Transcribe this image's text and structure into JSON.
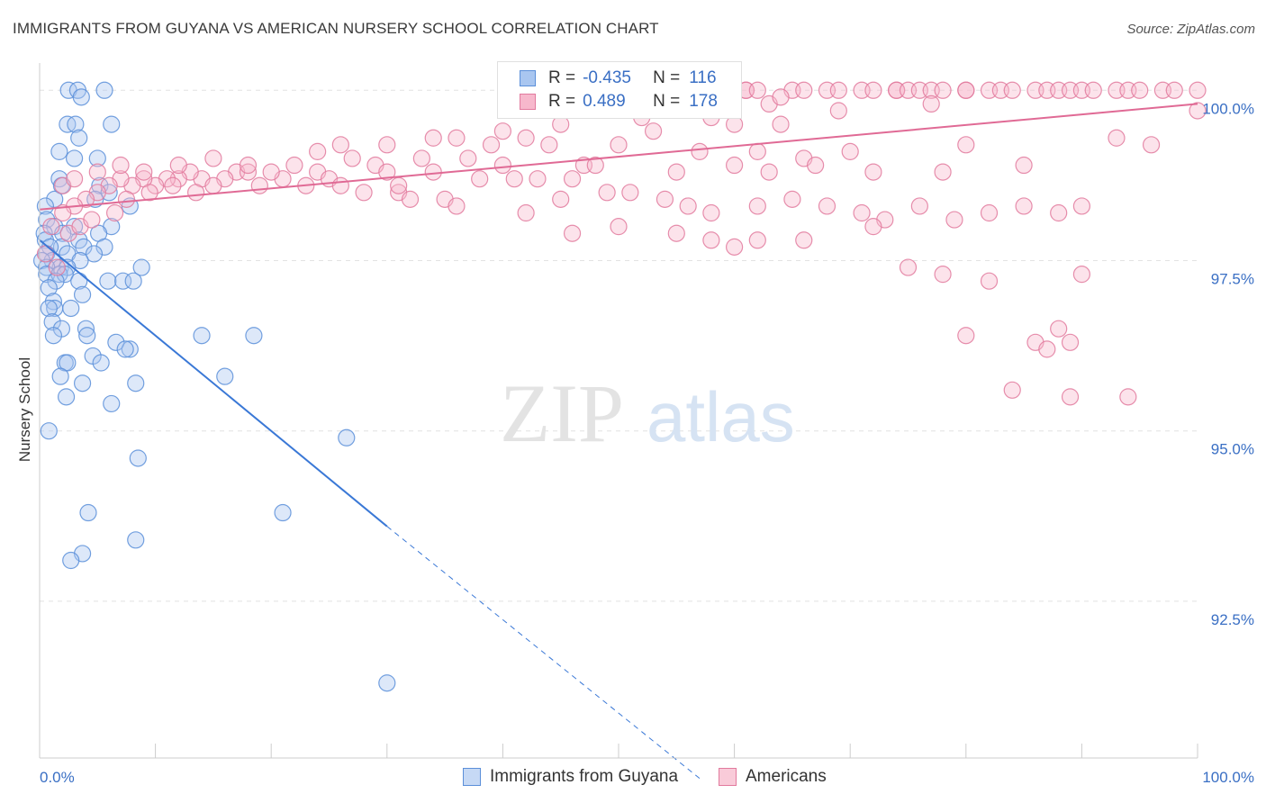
{
  "title": "IMMIGRANTS FROM GUYANA VS AMERICAN NURSERY SCHOOL CORRELATION CHART",
  "source": "Source: ZipAtlas.com",
  "watermark": {
    "zip": "ZIP",
    "atlas": "atlas"
  },
  "legend": {
    "r_label": "R = ",
    "n_label": "N = ",
    "series": [
      {
        "r": "-0.435",
        "n": "116",
        "fill": "#a9c6f0",
        "stroke": "#5b8fd9"
      },
      {
        "r": "0.489",
        "n": "178",
        "fill": "#f7b8cc",
        "stroke": "#e27a9e"
      }
    ]
  },
  "bottom_legend": [
    "Immigrants from Guyana",
    "Americans"
  ],
  "chart_data": {
    "type": "scatter",
    "ylabel": "Nursery School",
    "xlabel": "",
    "xlim": [
      0,
      100
    ],
    "ylim": [
      90.2,
      100.4
    ],
    "x_tick_labels": [
      "0.0%",
      "100.0%"
    ],
    "y_ticks": [
      100,
      97.5,
      95,
      92.5
    ],
    "y_tick_labels": [
      "100.0%",
      "97.5%",
      "95.0%",
      "92.5%"
    ],
    "grid": true,
    "series": [
      {
        "name": "Immigrants from Guyana",
        "color": "#5b8fd9",
        "fill": "#a9c6f0",
        "trend": {
          "x0": 0,
          "y0": 97.8,
          "x1": 30,
          "y1": 93.6,
          "dash_to_x": 57,
          "dash_to_y": 89.9,
          "color": "#3a78d6"
        },
        "points": [
          [
            2.5,
            100
          ],
          [
            3.3,
            100
          ],
          [
            5.6,
            100
          ],
          [
            3.6,
            99.9
          ],
          [
            2.4,
            99.5
          ],
          [
            3.1,
            99.5
          ],
          [
            6.2,
            99.5
          ],
          [
            3.4,
            99.3
          ],
          [
            1.7,
            99.1
          ],
          [
            3.0,
            99.0
          ],
          [
            5.0,
            99.0
          ],
          [
            1.7,
            98.7
          ],
          [
            1.9,
            98.6
          ],
          [
            5.2,
            98.6
          ],
          [
            6.0,
            98.5
          ],
          [
            1.3,
            98.4
          ],
          [
            4.8,
            98.4
          ],
          [
            0.5,
            98.3
          ],
          [
            7.8,
            98.3
          ],
          [
            0.6,
            98.1
          ],
          [
            1.3,
            98.0
          ],
          [
            3.0,
            98.0
          ],
          [
            6.2,
            98.0
          ],
          [
            0.4,
            97.9
          ],
          [
            2.0,
            97.9
          ],
          [
            3.4,
            97.8
          ],
          [
            5.1,
            97.9
          ],
          [
            0.5,
            97.8
          ],
          [
            1.9,
            97.7
          ],
          [
            0.9,
            97.7
          ],
          [
            3.8,
            97.7
          ],
          [
            5.6,
            97.7
          ],
          [
            0.6,
            97.6
          ],
          [
            2.4,
            97.6
          ],
          [
            4.7,
            97.6
          ],
          [
            3.5,
            97.5
          ],
          [
            1.1,
            97.5
          ],
          [
            0.2,
            97.5
          ],
          [
            1.8,
            97.4
          ],
          [
            0.6,
            97.4
          ],
          [
            2.4,
            97.4
          ],
          [
            8.8,
            97.4
          ],
          [
            0.6,
            97.3
          ],
          [
            1.7,
            97.3
          ],
          [
            2.2,
            97.3
          ],
          [
            3.4,
            97.2
          ],
          [
            5.9,
            97.2
          ],
          [
            7.2,
            97.2
          ],
          [
            8.1,
            97.2
          ],
          [
            1.4,
            97.2
          ],
          [
            0.8,
            97.1
          ],
          [
            3.7,
            97.0
          ],
          [
            1.2,
            96.9
          ],
          [
            1.3,
            96.8
          ],
          [
            2.7,
            96.8
          ],
          [
            0.8,
            96.8
          ],
          [
            1.1,
            96.6
          ],
          [
            1.9,
            96.5
          ],
          [
            4.0,
            96.5
          ],
          [
            4.1,
            96.4
          ],
          [
            1.2,
            96.4
          ],
          [
            14.0,
            96.4
          ],
          [
            18.5,
            96.4
          ],
          [
            6.6,
            96.3
          ],
          [
            7.8,
            96.2
          ],
          [
            7.4,
            96.2
          ],
          [
            4.6,
            96.1
          ],
          [
            2.2,
            96.0
          ],
          [
            2.4,
            96.0
          ],
          [
            5.3,
            96.0
          ],
          [
            1.8,
            95.8
          ],
          [
            3.7,
            95.7
          ],
          [
            8.3,
            95.7
          ],
          [
            16.0,
            95.8
          ],
          [
            2.3,
            95.5
          ],
          [
            6.2,
            95.4
          ],
          [
            0.8,
            95.0
          ],
          [
            26.5,
            94.9
          ],
          [
            8.5,
            94.6
          ],
          [
            4.2,
            93.8
          ],
          [
            21.0,
            93.8
          ],
          [
            8.3,
            93.4
          ],
          [
            3.7,
            93.2
          ],
          [
            2.7,
            93.1
          ],
          [
            30.0,
            91.3
          ]
        ]
      },
      {
        "name": "Americans",
        "color": "#e27a9e",
        "fill": "#f7b8cc",
        "trend": {
          "x0": 0,
          "y0": 98.25,
          "x1": 100,
          "y1": 99.8,
          "color": "#e06a95"
        },
        "points": [
          [
            61,
            100
          ],
          [
            61,
            100
          ],
          [
            62,
            100
          ],
          [
            65,
            100
          ],
          [
            66,
            100
          ],
          [
            68,
            100
          ],
          [
            69,
            100
          ],
          [
            71,
            100
          ],
          [
            72,
            100
          ],
          [
            74,
            100
          ],
          [
            74,
            100
          ],
          [
            75,
            100
          ],
          [
            76,
            100
          ],
          [
            77,
            100
          ],
          [
            78,
            100
          ],
          [
            80,
            100
          ],
          [
            80,
            100
          ],
          [
            82,
            100
          ],
          [
            83,
            100
          ],
          [
            84,
            100
          ],
          [
            86,
            100
          ],
          [
            87,
            100
          ],
          [
            88,
            100
          ],
          [
            89,
            100
          ],
          [
            90,
            100
          ],
          [
            91,
            100
          ],
          [
            93,
            100
          ],
          [
            94,
            100
          ],
          [
            95,
            100
          ],
          [
            97,
            100
          ],
          [
            98,
            100
          ],
          [
            100,
            100
          ],
          [
            48,
            99.9
          ],
          [
            52,
            99.9
          ],
          [
            55,
            99.9
          ],
          [
            59,
            99.9
          ],
          [
            63,
            99.8
          ],
          [
            64,
            99.9
          ],
          [
            77,
            99.8
          ],
          [
            69,
            99.7
          ],
          [
            58,
            99.6
          ],
          [
            60,
            99.5
          ],
          [
            64,
            99.5
          ],
          [
            100,
            99.7
          ],
          [
            53,
            99.4
          ],
          [
            36,
            99.3
          ],
          [
            42,
            99.3
          ],
          [
            44,
            99.2
          ],
          [
            39,
            99.2
          ],
          [
            50,
            99.2
          ],
          [
            57,
            99.1
          ],
          [
            80,
            99.2
          ],
          [
            62,
            99.1
          ],
          [
            66,
            99.0
          ],
          [
            70,
            99.1
          ],
          [
            93,
            99.3
          ],
          [
            96,
            99.2
          ],
          [
            33,
            99.0
          ],
          [
            37,
            99.0
          ],
          [
            40,
            98.9
          ],
          [
            47,
            98.9
          ],
          [
            48,
            98.9
          ],
          [
            55,
            98.8
          ],
          [
            60,
            98.9
          ],
          [
            63,
            98.8
          ],
          [
            67,
            98.9
          ],
          [
            72,
            98.8
          ],
          [
            78,
            98.8
          ],
          [
            85,
            98.9
          ],
          [
            27,
            99.0
          ],
          [
            29,
            98.9
          ],
          [
            30,
            98.8
          ],
          [
            34,
            98.8
          ],
          [
            38,
            98.7
          ],
          [
            41,
            98.7
          ],
          [
            43,
            98.7
          ],
          [
            46,
            98.7
          ],
          [
            22,
            98.9
          ],
          [
            24,
            98.8
          ],
          [
            25,
            98.7
          ],
          [
            21,
            98.7
          ],
          [
            20,
            98.8
          ],
          [
            17,
            98.8
          ],
          [
            16,
            98.7
          ],
          [
            18,
            98.8
          ],
          [
            19,
            98.6
          ],
          [
            14,
            98.7
          ],
          [
            13,
            98.8
          ],
          [
            15,
            98.6
          ],
          [
            12,
            98.7
          ],
          [
            11,
            98.7
          ],
          [
            10,
            98.6
          ],
          [
            9,
            98.7
          ],
          [
            8,
            98.6
          ],
          [
            7,
            98.7
          ],
          [
            6,
            98.6
          ],
          [
            5,
            98.5
          ],
          [
            4,
            98.4
          ],
          [
            3,
            98.3
          ],
          [
            2,
            98.2
          ],
          [
            1,
            98.0
          ],
          [
            0.5,
            97.6
          ],
          [
            1.5,
            97.4
          ],
          [
            2.5,
            97.9
          ],
          [
            3.5,
            98.0
          ],
          [
            4.5,
            98.1
          ],
          [
            6.5,
            98.2
          ],
          [
            7.5,
            98.4
          ],
          [
            9.5,
            98.5
          ],
          [
            11.5,
            98.6
          ],
          [
            13.5,
            98.5
          ],
          [
            23,
            98.6
          ],
          [
            26,
            98.6
          ],
          [
            28,
            98.5
          ],
          [
            31,
            98.5
          ],
          [
            32,
            98.4
          ],
          [
            35,
            98.4
          ],
          [
            45,
            98.4
          ],
          [
            49,
            98.5
          ],
          [
            51,
            98.5
          ],
          [
            54,
            98.4
          ],
          [
            56,
            98.3
          ],
          [
            58,
            98.2
          ],
          [
            62,
            98.3
          ],
          [
            65,
            98.4
          ],
          [
            68,
            98.3
          ],
          [
            71,
            98.2
          ],
          [
            73,
            98.1
          ],
          [
            76,
            98.3
          ],
          [
            79,
            98.1
          ],
          [
            82,
            98.2
          ],
          [
            85,
            98.3
          ],
          [
            88,
            98.2
          ],
          [
            90,
            98.3
          ],
          [
            31,
            98.6
          ],
          [
            36,
            98.3
          ],
          [
            42,
            98.2
          ],
          [
            50,
            98.0
          ],
          [
            55,
            97.9
          ],
          [
            58,
            97.8
          ],
          [
            62,
            97.8
          ],
          [
            66,
            97.8
          ],
          [
            46,
            97.9
          ],
          [
            60,
            97.7
          ],
          [
            72,
            98.0
          ],
          [
            75,
            97.4
          ],
          [
            78,
            97.3
          ],
          [
            82,
            97.2
          ],
          [
            90,
            97.3
          ],
          [
            86,
            96.3
          ],
          [
            87,
            96.2
          ],
          [
            89,
            96.3
          ],
          [
            80,
            96.4
          ],
          [
            88,
            96.5
          ],
          [
            84,
            95.6
          ],
          [
            89,
            95.5
          ],
          [
            94,
            95.5
          ],
          [
            2,
            98.6
          ],
          [
            3,
            98.7
          ],
          [
            5,
            98.8
          ],
          [
            7,
            98.9
          ],
          [
            9,
            98.8
          ],
          [
            12,
            98.9
          ],
          [
            15,
            99.0
          ],
          [
            18,
            98.9
          ],
          [
            24,
            99.1
          ],
          [
            26,
            99.2
          ],
          [
            30,
            99.2
          ],
          [
            34,
            99.3
          ],
          [
            40,
            99.4
          ],
          [
            45,
            99.5
          ],
          [
            52,
            99.6
          ]
        ]
      }
    ]
  }
}
